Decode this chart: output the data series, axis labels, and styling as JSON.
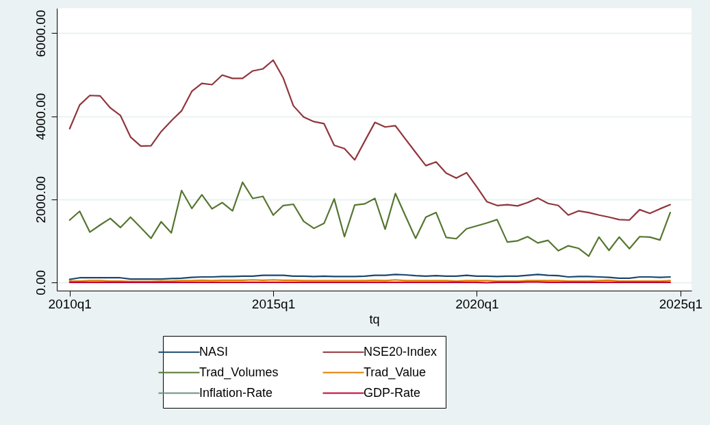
{
  "chart_data": {
    "type": "line",
    "xlabel": "tq",
    "x": [
      "2010-01",
      "2010-04",
      "2010-07",
      "2010-10",
      "2011-01",
      "2011-04",
      "2011-07",
      "2011-10",
      "2012-01",
      "2012-04",
      "2012-07",
      "2012-10",
      "2013-01",
      "2013-04",
      "2013-07",
      "2013-10",
      "2014-01",
      "2014-04",
      "2014-07",
      "2014-10",
      "2015-01",
      "2015-04",
      "2015-07",
      "2015-10",
      "2016-01",
      "2016-04",
      "2016-07",
      "2016-10",
      "2017-01",
      "2017-04",
      "2017-07",
      "2017-10",
      "2018-01",
      "2018-04",
      "2018-07",
      "2018-10",
      "2019-01",
      "2019-04",
      "2019-07",
      "2019-10",
      "2020-01",
      "2020-04",
      "2020-07",
      "2020-10",
      "2021-01",
      "2021-04",
      "2021-07",
      "2021-10",
      "2022-01",
      "2022-04",
      "2022-07",
      "2022-10",
      "2023-01",
      "2023-04",
      "2023-07",
      "2023-10",
      "2024-01",
      "2024-04",
      "2024-07",
      "2024-10"
    ],
    "xlim": [
      "2009-09-08",
      "2025-04-10"
    ],
    "xticks": [
      {
        "value": "2010-01",
        "label": "2010q1"
      },
      {
        "value": "2015-01",
        "label": "2015q1"
      },
      {
        "value": "2020-01",
        "label": "2020q1"
      },
      {
        "value": "2025-01",
        "label": "2025q1"
      }
    ],
    "ylim": [
      -200,
      6600
    ],
    "yticks": [
      {
        "value": 0,
        "label": "0.00"
      },
      {
        "value": 2000,
        "label": "2000.00"
      },
      {
        "value": 4000,
        "label": "4000.00"
      },
      {
        "value": 6000,
        "label": "6000.00"
      }
    ],
    "grid": "y",
    "legend": "bottom",
    "line_style": "solid",
    "series": [
      {
        "name": "NASI",
        "color": "#1a476f",
        "values": [
          70,
          110,
          110,
          110,
          110,
          110,
          80,
          80,
          80,
          80,
          90,
          100,
          120,
          130,
          130,
          140,
          140,
          150,
          150,
          170,
          170,
          170,
          150,
          150,
          140,
          150,
          140,
          140,
          140,
          150,
          170,
          170,
          190,
          180,
          160,
          150,
          160,
          150,
          150,
          170,
          150,
          150,
          140,
          150,
          150,
          170,
          190,
          170,
          160,
          130,
          140,
          140,
          130,
          120,
          100,
          100,
          130,
          130,
          120,
          130
        ]
      },
      {
        "name": "NSE20-Index",
        "color": "#90353b",
        "values": [
          3700,
          4270,
          4500,
          4490,
          4200,
          4020,
          3500,
          3280,
          3290,
          3630,
          3890,
          4130,
          4600,
          4790,
          4760,
          4990,
          4910,
          4910,
          5090,
          5140,
          5350,
          4920,
          4250,
          3980,
          3870,
          3820,
          3300,
          3220,
          2950,
          3400,
          3850,
          3740,
          3770,
          3450,
          3130,
          2810,
          2900,
          2630,
          2510,
          2640,
          2300,
          1940,
          1850,
          1870,
          1840,
          1920,
          2030,
          1900,
          1850,
          1620,
          1720,
          1680,
          1620,
          1570,
          1510,
          1500,
          1750,
          1660,
          1770,
          1870
        ]
      },
      {
        "name": "Trad_Volumes",
        "color": "#55752f",
        "values": [
          1500,
          1710,
          1210,
          1380,
          1540,
          1320,
          1570,
          1320,
          1060,
          1460,
          1190,
          2210,
          1780,
          2110,
          1770,
          1920,
          1720,
          2410,
          2020,
          2070,
          1620,
          1850,
          1880,
          1470,
          1300,
          1420,
          2010,
          1100,
          1860,
          1890,
          2020,
          1280,
          2140,
          1600,
          1060,
          1570,
          1680,
          1080,
          1050,
          1290,
          1360,
          1430,
          1510,
          970,
          1000,
          1100,
          950,
          1010,
          760,
          880,
          820,
          630,
          1090,
          770,
          1090,
          810,
          1100,
          1090,
          1020,
          1680
        ]
      },
      {
        "name": "Trad_Value",
        "color": "#e37e00",
        "values": [
          30,
          30,
          40,
          40,
          30,
          30,
          20,
          20,
          20,
          30,
          30,
          40,
          40,
          50,
          40,
          50,
          50,
          50,
          60,
          50,
          60,
          50,
          50,
          40,
          40,
          40,
          40,
          40,
          40,
          40,
          50,
          40,
          60,
          40,
          40,
          40,
          40,
          40,
          30,
          40,
          40,
          40,
          30,
          30,
          30,
          40,
          40,
          40,
          40,
          30,
          30,
          30,
          40,
          50,
          30,
          30,
          30,
          30,
          30,
          40
        ]
      },
      {
        "name": "Inflation-Rate",
        "color": "#6e8e84",
        "values": [
          null,
          null,
          null,
          null,
          null,
          null,
          null,
          null,
          null,
          null,
          null,
          null,
          null,
          null,
          null,
          null,
          null,
          null,
          null,
          null,
          null,
          null,
          null,
          null,
          null,
          null,
          null,
          null,
          null,
          null,
          null,
          null,
          null,
          null,
          null,
          null,
          null,
          null,
          null,
          null,
          null,
          null,
          null,
          null,
          null,
          null,
          null,
          null,
          null,
          null,
          null,
          null,
          null,
          null,
          null,
          null,
          null,
          null,
          null,
          null
        ]
      },
      {
        "name": "GDP-Rate",
        "color": "#c10534",
        "values": [
          0,
          0,
          0,
          0,
          0,
          0,
          0,
          0,
          0,
          0,
          0,
          0,
          0,
          0,
          0,
          0,
          0,
          0,
          0,
          0,
          0,
          0,
          0,
          0,
          0,
          0,
          0,
          0,
          0,
          0,
          0,
          0,
          0,
          0,
          0,
          0,
          0,
          0,
          0,
          0,
          0,
          -10,
          0,
          0,
          0,
          10,
          10,
          0,
          0,
          0,
          0,
          0,
          0,
          0,
          0,
          0,
          0,
          0,
          0,
          0
        ]
      }
    ]
  }
}
